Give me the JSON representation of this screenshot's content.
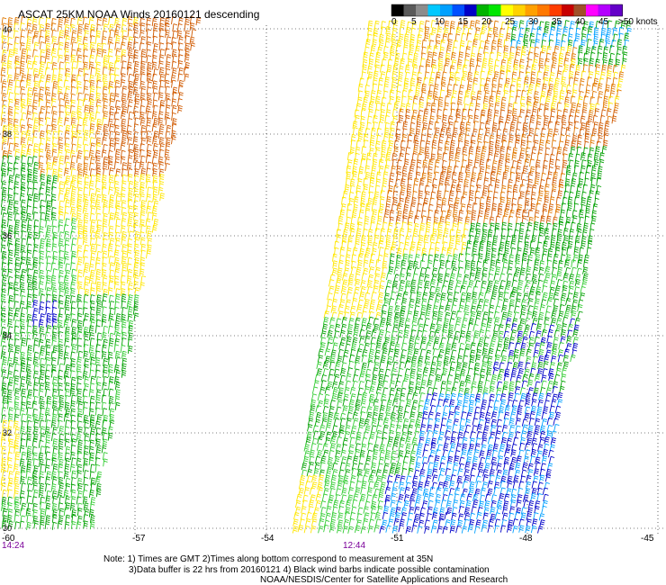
{
  "title": "ASCAT 25KM NOAA Winds 20160121 descending",
  "legend": {
    "colors": [
      "#000000",
      "#5a5a5a",
      "#8c8c8c",
      "#00c8ff",
      "#00a0ff",
      "#0050ff",
      "#0000c8",
      "#00b400",
      "#00e600",
      "#ffff00",
      "#ffd200",
      "#ffa000",
      "#ff7800",
      "#ff3c00",
      "#c80000",
      "#a05028",
      "#ff00ff",
      "#b400ff",
      "#6400c8"
    ],
    "labels": [
      "0",
      "5",
      "10",
      "15",
      "20",
      "25",
      "30",
      "35",
      "40",
      "45",
      ">50 knots"
    ]
  },
  "latitudes": [
    "40",
    "38",
    "36",
    "34",
    "32",
    "30"
  ],
  "longitudes": [
    "-60",
    "-57",
    "-54",
    "-51",
    "-48",
    "-45"
  ],
  "times": [
    "14:24",
    "12:44"
  ],
  "notes": [
    "Note: 1) Times are GMT 2)Times along bottom correspond to measurement at 35N",
    "3)Data buffer is 22 hrs from 20160121 4) Black wind barbs indicate possible contamination",
    "NOAA/NESDIS/Center for Satellite Applications and Research"
  ],
  "wind_colors": {
    "orange": "#e07800",
    "dark_orange": "#d05a00",
    "yellow": "#ffe600",
    "green": "#00a000",
    "light_green": "#33cc33",
    "blue": "#0000c8",
    "light_blue": "#00a0ff"
  }
}
